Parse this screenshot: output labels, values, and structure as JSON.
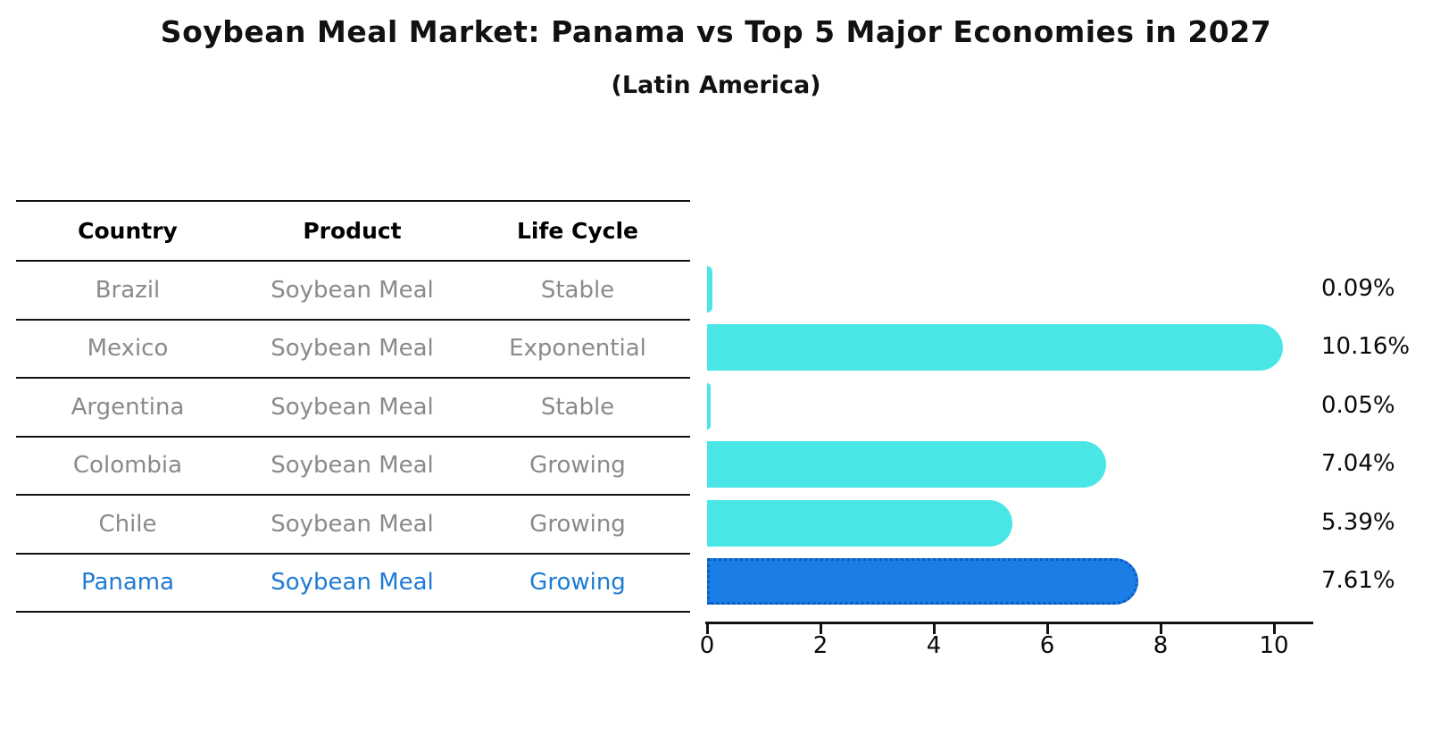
{
  "title": "Soybean Meal Market: Panama vs Top 5 Major Economies in 2027",
  "subtitle": "(Latin America)",
  "table": {
    "headers": [
      "Country",
      "Product",
      "Life Cycle"
    ],
    "rows": [
      {
        "country": "Brazil",
        "product": "Soybean Meal",
        "life_cycle": "Stable"
      },
      {
        "country": "Mexico",
        "product": "Soybean Meal",
        "life_cycle": "Exponential"
      },
      {
        "country": "Argentina",
        "product": "Soybean Meal",
        "life_cycle": "Stable"
      },
      {
        "country": "Colombia",
        "product": "Soybean Meal",
        "life_cycle": "Growing"
      },
      {
        "country": "Chile",
        "product": "Soybean Meal",
        "life_cycle": "Growing"
      },
      {
        "country": "Panama",
        "product": "Soybean Meal",
        "life_cycle": "Growing"
      }
    ],
    "highlighted_country": "Panama"
  },
  "chart_data": {
    "type": "bar",
    "orientation": "horizontal",
    "title": "Soybean Meal Market: Panama vs Top 5 Major Economies in 2027",
    "subtitle": "(Latin America)",
    "categories": [
      "Brazil",
      "Mexico",
      "Argentina",
      "Colombia",
      "Chile",
      "Panama"
    ],
    "values": [
      0.09,
      10.16,
      0.05,
      7.04,
      5.39,
      7.61
    ],
    "value_labels": [
      "0.09%",
      "10.16%",
      "0.05%",
      "7.04%",
      "5.39%",
      "7.61%"
    ],
    "x_ticks": [
      "0",
      "2",
      "4",
      "6",
      "8",
      "10"
    ],
    "xlim": [
      0,
      10.7
    ],
    "grid": false,
    "legend": "none",
    "bar_color": "#4ae6e6",
    "highlight_color": "#1b7de6",
    "highlight_border_color": "#0d5bbd",
    "highlight_index": 5,
    "highlight_text_color": "#1f7ad4",
    "table_text_color": "#8a8a8a"
  }
}
